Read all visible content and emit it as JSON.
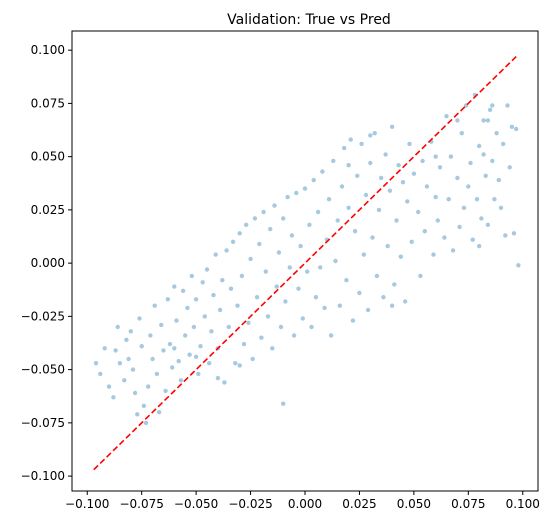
{
  "chart_data": {
    "type": "scatter",
    "title": "Validation: True vs Pred",
    "xlabel": "",
    "ylabel": "",
    "xlim": [
      -0.107,
      0.107
    ],
    "ylim": [
      -0.107,
      0.109
    ],
    "x_ticks": [
      -0.1,
      -0.075,
      -0.05,
      -0.025,
      0.0,
      0.025,
      0.05,
      0.075,
      0.1
    ],
    "x_tick_labels": [
      "−0.100",
      "−0.075",
      "−0.050",
      "−0.025",
      "0.000",
      "0.025",
      "0.050",
      "0.075",
      "0.100"
    ],
    "y_ticks": [
      -0.1,
      -0.075,
      -0.05,
      -0.025,
      0.0,
      0.025,
      0.05,
      0.075,
      0.1
    ],
    "y_tick_labels": [
      "−0.100",
      "−0.075",
      "−0.050",
      "−0.025",
      "0.000",
      "0.025",
      "0.050",
      "0.075",
      "0.100"
    ],
    "grid": false,
    "point_color": "#1f77b4",
    "point_alpha": 0.4,
    "reference_line": {
      "style": "dashed",
      "color": "#ff0000",
      "points": [
        [
          -0.097,
          -0.097
        ],
        [
          0.097,
          0.097
        ]
      ]
    },
    "series": [
      {
        "points": [
          [
            -0.096,
            -0.047
          ],
          [
            -0.094,
            -0.052
          ],
          [
            -0.092,
            -0.04
          ],
          [
            -0.09,
            -0.058
          ],
          [
            -0.088,
            -0.063
          ],
          [
            -0.087,
            -0.041
          ],
          [
            -0.086,
            -0.03
          ],
          [
            -0.085,
            -0.047
          ],
          [
            -0.083,
            -0.055
          ],
          [
            -0.082,
            -0.036
          ],
          [
            -0.081,
            -0.045
          ],
          [
            -0.08,
            -0.032
          ],
          [
            -0.079,
            -0.05
          ],
          [
            -0.078,
            -0.061
          ],
          [
            -0.077,
            -0.071
          ],
          [
            -0.076,
            -0.026
          ],
          [
            -0.075,
            -0.039
          ],
          [
            -0.074,
            -0.067
          ],
          [
            -0.073,
            -0.075
          ],
          [
            -0.072,
            -0.058
          ],
          [
            -0.071,
            -0.034
          ],
          [
            -0.07,
            -0.045
          ],
          [
            -0.069,
            -0.02
          ],
          [
            -0.068,
            -0.052
          ],
          [
            -0.067,
            -0.07
          ],
          [
            -0.066,
            -0.029
          ],
          [
            -0.065,
            -0.041
          ],
          [
            -0.064,
            -0.06
          ],
          [
            -0.063,
            -0.017
          ],
          [
            -0.062,
            -0.038
          ],
          [
            -0.061,
            -0.049
          ],
          [
            -0.06,
            -0.011
          ],
          [
            -0.059,
            -0.027
          ],
          [
            -0.058,
            -0.046
          ],
          [
            -0.057,
            -0.055
          ],
          [
            -0.056,
            -0.013
          ],
          [
            -0.055,
            -0.034
          ],
          [
            -0.054,
            -0.021
          ],
          [
            -0.053,
            -0.043
          ],
          [
            -0.052,
            -0.006
          ],
          [
            -0.051,
            -0.03
          ],
          [
            -0.05,
            -0.017
          ],
          [
            -0.049,
            -0.052
          ],
          [
            -0.048,
            -0.039
          ],
          [
            -0.047,
            -0.009
          ],
          [
            -0.046,
            -0.025
          ],
          [
            -0.045,
            -0.003
          ],
          [
            -0.044,
            -0.047
          ],
          [
            -0.043,
            -0.032
          ],
          [
            -0.042,
            -0.015
          ],
          [
            -0.041,
            0.004
          ],
          [
            -0.04,
            -0.04
          ],
          [
            -0.039,
            -0.022
          ],
          [
            -0.038,
            -0.008
          ],
          [
            -0.037,
            -0.056
          ],
          [
            -0.036,
            0.006
          ],
          [
            -0.035,
            -0.03
          ],
          [
            -0.034,
            -0.012
          ],
          [
            -0.033,
            0.01
          ],
          [
            -0.032,
            -0.047
          ],
          [
            -0.031,
            -0.02
          ],
          [
            -0.03,
            0.014
          ],
          [
            -0.029,
            -0.006
          ],
          [
            -0.028,
            -0.038
          ],
          [
            -0.027,
            0.018
          ],
          [
            -0.026,
            -0.028
          ],
          [
            -0.025,
            0.002
          ],
          [
            -0.024,
            -0.045
          ],
          [
            -0.023,
            0.021
          ],
          [
            -0.022,
            -0.016
          ],
          [
            -0.021,
            0.009
          ],
          [
            -0.02,
            -0.035
          ],
          [
            -0.019,
            0.024
          ],
          [
            -0.018,
            -0.004
          ],
          [
            -0.017,
            -0.025
          ],
          [
            -0.016,
            0.016
          ],
          [
            -0.015,
            -0.04
          ],
          [
            -0.014,
            0.027
          ],
          [
            -0.013,
            -0.011
          ],
          [
            -0.012,
            0.005
          ],
          [
            -0.011,
            -0.03
          ],
          [
            -0.01,
            0.021
          ],
          [
            -0.009,
            -0.018
          ],
          [
            -0.008,
            0.031
          ],
          [
            -0.007,
            -0.002
          ],
          [
            -0.006,
            0.013
          ],
          [
            -0.005,
            -0.034
          ],
          [
            -0.004,
            0.033
          ],
          [
            -0.003,
            -0.012
          ],
          [
            -0.002,
            0.008
          ],
          [
            -0.001,
            -0.026
          ],
          [
            0.0,
            0.035
          ],
          [
            0.001,
            -0.004
          ],
          [
            0.002,
            0.018
          ],
          [
            0.003,
            -0.03
          ],
          [
            0.004,
            0.039
          ],
          [
            0.005,
            -0.016
          ],
          [
            0.006,
            0.024
          ],
          [
            0.007,
            -0.002
          ],
          [
            0.008,
            0.043
          ],
          [
            0.009,
            -0.021
          ],
          [
            0.01,
            0.011
          ],
          [
            0.011,
            0.03
          ],
          [
            0.012,
            -0.034
          ],
          [
            0.013,
            0.048
          ],
          [
            0.014,
            0.001
          ],
          [
            0.015,
            0.02
          ],
          [
            0.016,
            -0.02
          ],
          [
            0.017,
            0.036
          ],
          [
            0.018,
            0.054
          ],
          [
            0.019,
            -0.008
          ],
          [
            0.02,
            0.026
          ],
          [
            0.021,
            0.058
          ],
          [
            0.022,
            -0.027
          ],
          [
            0.023,
            0.015
          ],
          [
            0.024,
            0.041
          ],
          [
            0.025,
            -0.014
          ],
          [
            0.026,
            0.056
          ],
          [
            0.027,
            0.004
          ],
          [
            0.028,
            0.032
          ],
          [
            0.029,
            -0.022
          ],
          [
            0.03,
            0.047
          ],
          [
            0.031,
            0.012
          ],
          [
            0.032,
            0.061
          ],
          [
            0.033,
            -0.006
          ],
          [
            0.034,
            0.025
          ],
          [
            0.035,
            0.04
          ],
          [
            0.036,
            -0.016
          ],
          [
            0.037,
            0.051
          ],
          [
            0.038,
            0.008
          ],
          [
            0.039,
            0.034
          ],
          [
            0.04,
            0.064
          ],
          [
            0.041,
            -0.01
          ],
          [
            0.042,
            0.02
          ],
          [
            0.043,
            0.046
          ],
          [
            0.044,
            0.003
          ],
          [
            0.045,
            0.038
          ],
          [
            0.046,
            -0.018
          ],
          [
            0.047,
            0.029
          ],
          [
            0.048,
            0.056
          ],
          [
            0.049,
            0.01
          ],
          [
            0.05,
            0.042
          ],
          [
            0.052,
            0.024
          ],
          [
            0.053,
            -0.006
          ],
          [
            0.054,
            0.048
          ],
          [
            0.055,
            0.015
          ],
          [
            0.056,
            0.036
          ],
          [
            0.058,
            0.057
          ],
          [
            0.059,
            0.004
          ],
          [
            0.06,
            0.031
          ],
          [
            0.061,
            0.02
          ],
          [
            0.062,
            0.045
          ],
          [
            0.064,
            0.012
          ],
          [
            0.065,
            0.069
          ],
          [
            0.066,
            0.03
          ],
          [
            0.067,
            0.05
          ],
          [
            0.068,
            0.006
          ],
          [
            0.07,
            0.04
          ],
          [
            0.071,
            0.017
          ],
          [
            0.072,
            0.061
          ],
          [
            0.073,
            0.026
          ],
          [
            0.074,
            0.074
          ],
          [
            0.075,
            0.036
          ],
          [
            0.076,
            0.047
          ],
          [
            0.077,
            0.011
          ],
          [
            0.078,
            0.079
          ],
          [
            0.079,
            0.03
          ],
          [
            0.08,
            0.055
          ],
          [
            0.081,
            0.021
          ],
          [
            0.082,
            0.067
          ],
          [
            0.083,
            0.041
          ],
          [
            0.084,
            0.018
          ],
          [
            0.085,
            0.072
          ],
          [
            0.086,
            0.048
          ],
          [
            0.087,
            0.03
          ],
          [
            0.088,
            0.061
          ],
          [
            0.089,
            0.039
          ],
          [
            0.09,
            0.026
          ],
          [
            0.091,
            0.056
          ],
          [
            0.092,
            0.013
          ],
          [
            0.093,
            0.074
          ],
          [
            0.094,
            0.045
          ],
          [
            0.095,
            0.064
          ],
          [
            0.096,
            0.014
          ],
          [
            0.097,
            0.063
          ],
          [
            0.098,
            -0.001
          ],
          [
            0.086,
            0.074
          ],
          [
            0.084,
            0.067
          ],
          [
            0.082,
            0.051
          ],
          [
            0.08,
            0.008
          ],
          [
            -0.01,
            -0.066
          ],
          [
            0.03,
            0.06
          ],
          [
            -0.04,
            -0.054
          ],
          [
            0.06,
            0.05
          ],
          [
            -0.06,
            -0.04
          ],
          [
            0.04,
            -0.02
          ],
          [
            -0.03,
            -0.048
          ],
          [
            0.02,
            0.046
          ],
          [
            -0.05,
            -0.044
          ],
          [
            0.07,
            0.067
          ]
        ]
      }
    ]
  }
}
